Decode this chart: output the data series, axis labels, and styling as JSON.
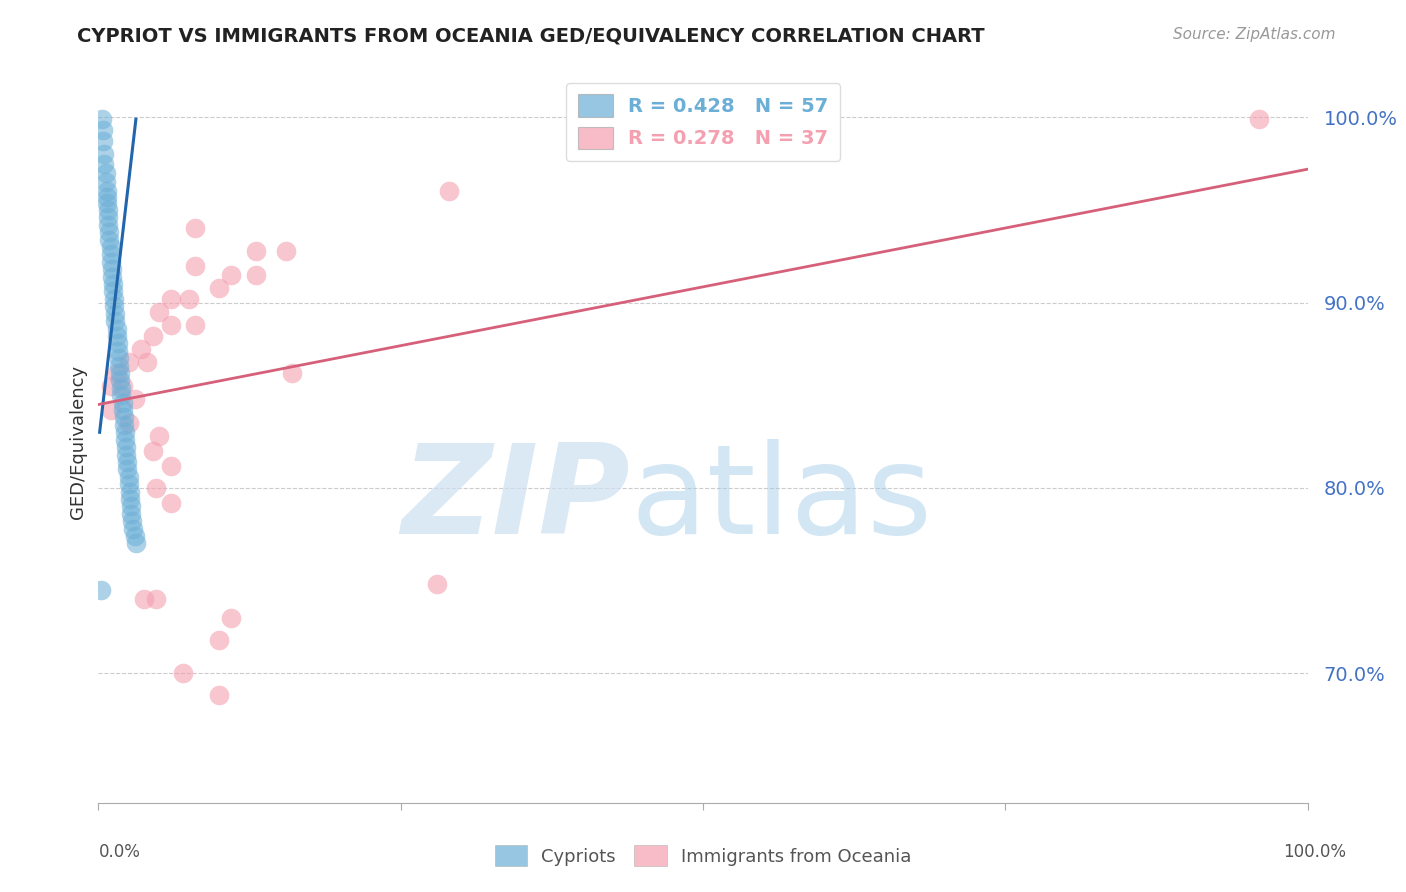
{
  "title": "CYPRIOT VS IMMIGRANTS FROM OCEANIA GED/EQUIVALENCY CORRELATION CHART",
  "source": "Source: ZipAtlas.com",
  "ylabel": "GED/Equivalency",
  "xlim": [
    0.0,
    1.0
  ],
  "ylim": [
    0.63,
    1.02
  ],
  "yticks": [
    0.7,
    0.8,
    0.9,
    1.0
  ],
  "ytick_labels": [
    "70.0%",
    "80.0%",
    "90.0%",
    "100.0%"
  ],
  "legend_entries": [
    {
      "label": "R = 0.428   N = 57",
      "color": "#6baed6"
    },
    {
      "label": "R = 0.278   N = 37",
      "color": "#f4a0b0"
    }
  ],
  "legend_labels_bottom": [
    "Cypriots",
    "Immigrants from Oceania"
  ],
  "blue_color": "#6baed6",
  "pink_color": "#f4a0b0",
  "blue_line_color": "#2166ac",
  "pink_line_color": "#d6607a",
  "blue_scatter": [
    [
      0.003,
      0.999
    ],
    [
      0.004,
      0.993
    ],
    [
      0.004,
      0.987
    ],
    [
      0.005,
      0.98
    ],
    [
      0.005,
      0.975
    ],
    [
      0.006,
      0.97
    ],
    [
      0.006,
      0.965
    ],
    [
      0.007,
      0.96
    ],
    [
      0.007,
      0.957
    ],
    [
      0.007,
      0.954
    ],
    [
      0.008,
      0.95
    ],
    [
      0.008,
      0.946
    ],
    [
      0.008,
      0.942
    ],
    [
      0.009,
      0.938
    ],
    [
      0.009,
      0.934
    ],
    [
      0.01,
      0.93
    ],
    [
      0.01,
      0.926
    ],
    [
      0.01,
      0.922
    ],
    [
      0.011,
      0.918
    ],
    [
      0.011,
      0.914
    ],
    [
      0.012,
      0.91
    ],
    [
      0.012,
      0.906
    ],
    [
      0.013,
      0.902
    ],
    [
      0.013,
      0.898
    ],
    [
      0.014,
      0.894
    ],
    [
      0.014,
      0.89
    ],
    [
      0.015,
      0.886
    ],
    [
      0.015,
      0.882
    ],
    [
      0.016,
      0.878
    ],
    [
      0.016,
      0.874
    ],
    [
      0.017,
      0.87
    ],
    [
      0.017,
      0.866
    ],
    [
      0.018,
      0.862
    ],
    [
      0.018,
      0.858
    ],
    [
      0.019,
      0.854
    ],
    [
      0.019,
      0.85
    ],
    [
      0.02,
      0.846
    ],
    [
      0.02,
      0.842
    ],
    [
      0.021,
      0.838
    ],
    [
      0.021,
      0.834
    ],
    [
      0.022,
      0.83
    ],
    [
      0.022,
      0.826
    ],
    [
      0.023,
      0.822
    ],
    [
      0.023,
      0.818
    ],
    [
      0.024,
      0.814
    ],
    [
      0.024,
      0.81
    ],
    [
      0.025,
      0.806
    ],
    [
      0.025,
      0.802
    ],
    [
      0.026,
      0.798
    ],
    [
      0.026,
      0.794
    ],
    [
      0.027,
      0.79
    ],
    [
      0.027,
      0.786
    ],
    [
      0.028,
      0.782
    ],
    [
      0.029,
      0.778
    ],
    [
      0.002,
      0.745
    ],
    [
      0.03,
      0.774
    ],
    [
      0.031,
      0.77
    ]
  ],
  "pink_scatter": [
    [
      0.96,
      0.999
    ],
    [
      0.29,
      0.96
    ],
    [
      0.08,
      0.94
    ],
    [
      0.13,
      0.928
    ],
    [
      0.155,
      0.928
    ],
    [
      0.08,
      0.92
    ],
    [
      0.11,
      0.915
    ],
    [
      0.13,
      0.915
    ],
    [
      0.1,
      0.908
    ],
    [
      0.06,
      0.902
    ],
    [
      0.075,
      0.902
    ],
    [
      0.05,
      0.895
    ],
    [
      0.06,
      0.888
    ],
    [
      0.08,
      0.888
    ],
    [
      0.045,
      0.882
    ],
    [
      0.035,
      0.875
    ],
    [
      0.025,
      0.868
    ],
    [
      0.015,
      0.862
    ],
    [
      0.01,
      0.855
    ],
    [
      0.02,
      0.855
    ],
    [
      0.03,
      0.848
    ],
    [
      0.04,
      0.868
    ],
    [
      0.16,
      0.862
    ],
    [
      0.01,
      0.842
    ],
    [
      0.025,
      0.835
    ],
    [
      0.05,
      0.828
    ],
    [
      0.045,
      0.82
    ],
    [
      0.06,
      0.812
    ],
    [
      0.048,
      0.8
    ],
    [
      0.06,
      0.792
    ],
    [
      0.28,
      0.748
    ],
    [
      0.038,
      0.74
    ],
    [
      0.048,
      0.74
    ],
    [
      0.11,
      0.73
    ],
    [
      0.1,
      0.718
    ],
    [
      0.07,
      0.7
    ],
    [
      0.1,
      0.688
    ]
  ],
  "blue_trend_x": [
    0.001,
    0.031
  ],
  "blue_trend_y": [
    0.83,
    0.999
  ],
  "pink_trend_x": [
    0.0,
    1.0
  ],
  "pink_trend_y": [
    0.845,
    0.972
  ]
}
